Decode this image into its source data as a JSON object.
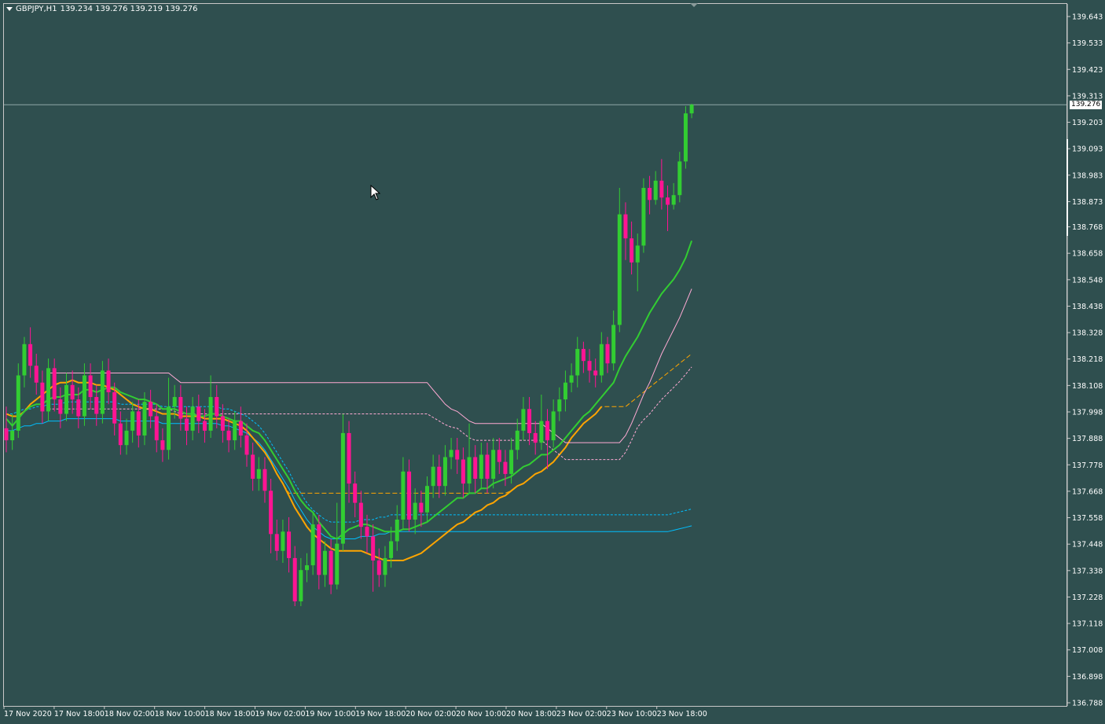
{
  "header": {
    "symbol": "GBPJPY,H1",
    "ohlc": "139.234 139.276 139.219 139.276"
  },
  "current_price_label": "139.276",
  "colors": {
    "background": "#2f4f4f",
    "bull_candle": "#32cd32",
    "bear_candle": "#ff1493",
    "price_line": "#8fa8a8",
    "ma_fast": "#32cd32",
    "ma_orange": "#ffa500",
    "ma_cyan": "#00bfff",
    "ma_pink": "#ffaad4"
  },
  "chart_data": {
    "type": "candlestick",
    "symbol": "GBPJPY",
    "timeframe": "H1",
    "ylim": [
      136.74,
      139.69
    ],
    "y_ticks": [
      "139.643",
      "139.533",
      "139.423",
      "139.313",
      "139.203",
      "139.093",
      "138.983",
      "138.873",
      "138.768",
      "138.658",
      "138.548",
      "138.438",
      "138.328",
      "138.218",
      "138.108",
      "137.998",
      "137.888",
      "137.778",
      "137.668",
      "137.558",
      "137.448",
      "137.338",
      "137.228",
      "137.118",
      "137.008",
      "136.898",
      "136.788"
    ],
    "x_ticks": [
      "17 Nov 2020",
      "17 Nov 18:00",
      "18 Nov 02:00",
      "18 Nov 10:00",
      "18 Nov 18:00",
      "19 Nov 02:00",
      "19 Nov 10:00",
      "19 Nov 18:00",
      "20 Nov 02:00",
      "20 Nov 10:00",
      "20 Nov 18:00",
      "23 Nov 02:00",
      "23 Nov 10:00",
      "23 Nov 18:00"
    ],
    "current_price": 139.276,
    "candles": [
      [
        137.93,
        137.88,
        138.02,
        137.83
      ],
      [
        137.88,
        137.92,
        137.99,
        137.84
      ],
      [
        137.92,
        138.15,
        138.2,
        137.89
      ],
      [
        138.15,
        138.28,
        138.31,
        138.1
      ],
      [
        138.28,
        138.19,
        138.35,
        138.14
      ],
      [
        138.19,
        138.12,
        138.24,
        138.07
      ],
      [
        138.12,
        138.0,
        138.17,
        137.95
      ],
      [
        138.0,
        138.18,
        138.22,
        137.96
      ],
      [
        138.18,
        138.05,
        138.22,
        138.0
      ],
      [
        138.05,
        137.99,
        138.1,
        137.93
      ],
      [
        137.99,
        138.11,
        138.16,
        137.96
      ],
      [
        138.11,
        138.05,
        138.17,
        137.99
      ],
      [
        138.05,
        137.98,
        138.1,
        137.93
      ],
      [
        137.98,
        138.15,
        138.2,
        137.94
      ],
      [
        138.15,
        138.06,
        138.2,
        138.01
      ],
      [
        138.06,
        137.99,
        138.11,
        137.94
      ],
      [
        137.99,
        138.17,
        138.21,
        137.95
      ],
      [
        138.17,
        138.08,
        138.22,
        138.03
      ],
      [
        138.08,
        137.95,
        138.12,
        137.9
      ],
      [
        137.95,
        137.86,
        138.0,
        137.82
      ],
      [
        137.86,
        137.92,
        137.97,
        137.82
      ],
      [
        137.92,
        138.0,
        138.04,
        137.87
      ],
      [
        138.0,
        137.9,
        138.05,
        137.85
      ],
      [
        137.9,
        138.04,
        138.08,
        137.86
      ],
      [
        138.04,
        137.98,
        138.09,
        137.93
      ],
      [
        137.98,
        137.88,
        138.03,
        137.83
      ],
      [
        137.88,
        137.84,
        137.93,
        137.79
      ],
      [
        137.84,
        138.02,
        138.14,
        137.8
      ],
      [
        138.02,
        138.06,
        138.11,
        137.97
      ],
      [
        138.06,
        137.97,
        138.11,
        137.92
      ],
      [
        137.97,
        137.92,
        138.02,
        137.86
      ],
      [
        137.92,
        138.02,
        138.06,
        137.88
      ],
      [
        138.02,
        137.96,
        138.07,
        137.91
      ],
      [
        137.96,
        137.92,
        138.01,
        137.87
      ],
      [
        137.92,
        138.06,
        138.15,
        137.89
      ],
      [
        138.06,
        137.98,
        138.11,
        137.93
      ],
      [
        137.98,
        137.92,
        138.03,
        137.87
      ],
      [
        137.92,
        137.88,
        137.97,
        137.83
      ],
      [
        137.88,
        137.96,
        138.0,
        137.84
      ],
      [
        137.96,
        137.9,
        138.02,
        137.85
      ],
      [
        137.9,
        137.82,
        137.95,
        137.77
      ],
      [
        137.82,
        137.72,
        137.87,
        137.67
      ],
      [
        137.72,
        137.76,
        137.81,
        137.67
      ],
      [
        137.76,
        137.67,
        137.81,
        137.62
      ],
      [
        137.67,
        137.49,
        137.72,
        137.41
      ],
      [
        137.49,
        137.42,
        137.55,
        137.38
      ],
      [
        137.42,
        137.5,
        137.55,
        137.37
      ],
      [
        137.5,
        137.39,
        137.56,
        137.33
      ],
      [
        137.39,
        137.21,
        137.44,
        137.19
      ],
      [
        137.21,
        137.34,
        137.39,
        137.19
      ],
      [
        137.34,
        137.36,
        137.41,
        137.29
      ],
      [
        137.36,
        137.53,
        137.58,
        137.32
      ],
      [
        137.53,
        137.32,
        137.57,
        137.26
      ],
      [
        137.32,
        137.42,
        137.46,
        137.27
      ],
      [
        137.42,
        137.28,
        137.47,
        137.24
      ],
      [
        137.28,
        137.45,
        137.62,
        137.26
      ],
      [
        137.45,
        137.91,
        137.99,
        137.42
      ],
      [
        137.91,
        137.7,
        137.96,
        137.62
      ],
      [
        137.7,
        137.62,
        137.75,
        137.56
      ],
      [
        137.62,
        137.52,
        137.67,
        137.47
      ],
      [
        137.52,
        137.48,
        137.57,
        137.41
      ],
      [
        137.48,
        137.38,
        137.53,
        137.25
      ],
      [
        137.38,
        137.32,
        137.43,
        137.27
      ],
      [
        137.32,
        137.39,
        137.44,
        137.27
      ],
      [
        137.39,
        137.46,
        137.52,
        137.35
      ],
      [
        137.46,
        137.55,
        137.61,
        137.42
      ],
      [
        137.55,
        137.75,
        137.81,
        137.51
      ],
      [
        137.75,
        137.55,
        137.8,
        137.5
      ],
      [
        137.55,
        137.62,
        137.68,
        137.49
      ],
      [
        137.62,
        137.58,
        137.67,
        137.52
      ],
      [
        137.58,
        137.69,
        137.73,
        137.54
      ],
      [
        137.69,
        137.77,
        137.82,
        137.64
      ],
      [
        137.77,
        137.69,
        137.82,
        137.64
      ],
      [
        137.69,
        137.81,
        137.86,
        137.65
      ],
      [
        137.81,
        137.84,
        137.89,
        137.76
      ],
      [
        137.84,
        137.8,
        137.89,
        137.74
      ],
      [
        137.8,
        137.7,
        137.85,
        137.64
      ],
      [
        137.7,
        137.81,
        137.95,
        137.66
      ],
      [
        137.81,
        137.72,
        137.86,
        137.66
      ],
      [
        137.72,
        137.82,
        137.87,
        137.68
      ],
      [
        137.82,
        137.72,
        137.87,
        137.66
      ],
      [
        137.72,
        137.84,
        137.89,
        137.68
      ],
      [
        137.84,
        137.79,
        137.89,
        137.74
      ],
      [
        137.79,
        137.74,
        137.84,
        137.69
      ],
      [
        137.74,
        137.84,
        137.89,
        137.7
      ],
      [
        137.84,
        137.92,
        137.97,
        137.8
      ],
      [
        137.92,
        138.01,
        138.06,
        137.88
      ],
      [
        138.01,
        137.91,
        138.06,
        137.86
      ],
      [
        137.91,
        137.87,
        137.96,
        137.82
      ],
      [
        137.87,
        137.96,
        138.07,
        137.84
      ],
      [
        137.96,
        137.88,
        138.01,
        137.76
      ],
      [
        137.88,
        138.0,
        138.05,
        137.85
      ],
      [
        138.0,
        138.05,
        138.1,
        137.96
      ],
      [
        138.05,
        138.12,
        138.17,
        138.0
      ],
      [
        138.12,
        138.15,
        138.2,
        138.08
      ],
      [
        138.15,
        138.26,
        138.31,
        138.1
      ],
      [
        138.26,
        138.21,
        138.29,
        138.16
      ],
      [
        138.21,
        138.17,
        138.26,
        138.12
      ],
      [
        138.17,
        138.15,
        138.22,
        138.1
      ],
      [
        138.15,
        138.28,
        138.33,
        138.12
      ],
      [
        138.28,
        138.2,
        138.31,
        138.16
      ],
      [
        138.2,
        138.36,
        138.42,
        138.17
      ],
      [
        138.36,
        138.82,
        138.93,
        138.33
      ],
      [
        138.82,
        138.72,
        138.87,
        138.63
      ],
      [
        138.72,
        138.62,
        138.79,
        138.57
      ],
      [
        138.62,
        138.69,
        138.74,
        138.5
      ],
      [
        138.69,
        138.93,
        138.97,
        138.66
      ],
      [
        138.93,
        138.88,
        138.98,
        138.82
      ],
      [
        138.88,
        138.96,
        139.0,
        138.86
      ],
      [
        138.96,
        138.89,
        139.05,
        138.84
      ],
      [
        138.89,
        138.86,
        138.94,
        138.75
      ],
      [
        138.86,
        138.9,
        138.95,
        138.84
      ],
      [
        138.9,
        139.04,
        139.08,
        138.87
      ],
      [
        139.04,
        139.24,
        139.27,
        139.01
      ],
      [
        139.24,
        139.276,
        139.28,
        139.22
      ]
    ],
    "ma_fast": [
      137.97,
      137.94,
      137.97,
      138.0,
      138.02,
      138.03,
      138.03,
      138.05,
      138.06,
      138.06,
      138.07,
      138.07,
      138.07,
      138.09,
      138.09,
      138.08,
      138.09,
      138.1,
      138.1,
      138.08,
      138.07,
      138.06,
      138.05,
      138.05,
      138.04,
      138.03,
      138.01,
      138.01,
      138.01,
      138.0,
      137.99,
      137.99,
      137.98,
      137.98,
      137.99,
      137.99,
      137.98,
      137.97,
      137.96,
      137.96,
      137.94,
      137.92,
      137.91,
      137.88,
      137.84,
      137.8,
      137.76,
      137.72,
      137.67,
      137.63,
      137.6,
      137.58,
      137.54,
      137.51,
      137.48,
      137.47,
      137.49,
      137.51,
      137.52,
      137.53,
      137.53,
      137.52,
      137.51,
      137.5,
      137.5,
      137.5,
      137.51,
      137.51,
      137.52,
      137.53,
      137.54,
      137.56,
      137.58,
      137.6,
      137.62,
      137.64,
      137.64,
      137.66,
      137.66,
      137.68,
      137.68,
      137.7,
      137.71,
      137.72,
      137.73,
      137.75,
      137.77,
      137.78,
      137.8,
      137.82,
      137.82,
      137.84,
      137.86,
      137.89,
      137.92,
      137.95,
      137.98,
      138.0,
      138.03,
      138.06,
      138.09,
      138.12,
      138.18,
      138.23,
      138.27,
      138.31,
      138.36,
      138.41,
      138.45,
      138.49,
      138.52,
      138.55,
      138.59,
      138.64,
      138.71
    ],
    "ma_orange": [
      137.99,
      137.98,
      137.98,
      138.0,
      138.03,
      138.05,
      138.07,
      138.09,
      138.11,
      138.12,
      138.12,
      138.13,
      138.12,
      138.12,
      138.12,
      138.11,
      138.11,
      138.1,
      138.09,
      138.07,
      138.05,
      138.03,
      138.02,
      138.01,
      138.01,
      138.0,
      137.99,
      137.99,
      137.99,
      137.98,
      137.98,
      137.98,
      137.98,
      137.97,
      137.97,
      137.97,
      137.97,
      137.96,
      137.95,
      137.94,
      137.92,
      137.89,
      137.86,
      137.83,
      137.79,
      137.74,
      137.7,
      137.65,
      137.6,
      137.56,
      137.52,
      137.49,
      137.47,
      137.45,
      137.43,
      137.42,
      137.42,
      137.42,
      137.42,
      137.42,
      137.41,
      137.4,
      137.39,
      137.38,
      137.38,
      137.38,
      137.38,
      137.39,
      137.4,
      137.41,
      137.43,
      137.45,
      137.47,
      137.49,
      137.51,
      137.53,
      137.54,
      137.56,
      137.58,
      137.59,
      137.61,
      137.62,
      137.64,
      137.65,
      137.67,
      137.69,
      137.7,
      137.72,
      137.74,
      137.75,
      137.77,
      137.79,
      137.82,
      137.85,
      137.89,
      137.92,
      137.95,
      137.97,
      137.99,
      138.02
    ],
    "ma_cyan": [
      137.92,
      137.92,
      137.93,
      137.94,
      137.94,
      137.95,
      137.95,
      137.96,
      137.96,
      137.96,
      137.97,
      137.97,
      137.97,
      137.97,
      137.97,
      137.97,
      137.97,
      137.97,
      137.97,
      137.96,
      137.96,
      137.96,
      137.96,
      137.96,
      137.96,
      137.96,
      137.95,
      137.95,
      137.95,
      137.95,
      137.95,
      137.95,
      137.95,
      137.95,
      137.95,
      137.95,
      137.94,
      137.94,
      137.93,
      137.92,
      137.91,
      137.89,
      137.87,
      137.84,
      137.8,
      137.76,
      137.72,
      137.68,
      137.63,
      137.59,
      137.55,
      137.52,
      137.5,
      137.48,
      137.47,
      137.47,
      137.47,
      137.47,
      137.47,
      137.48,
      137.48,
      137.48,
      137.49,
      137.49,
      137.5,
      137.5,
      137.5,
      137.5
    ],
    "pink_upper": [
      138.16,
      138.16,
      138.16,
      138.16,
      138.16,
      138.16,
      138.16,
      138.16,
      138.16,
      138.16,
      138.16,
      138.16,
      138.16,
      138.16,
      138.16,
      138.16,
      138.16,
      138.16,
      138.16,
      138.16,
      138.16,
      138.14,
      138.12,
      138.12,
      138.12,
      138.12,
      138.12,
      138.12,
      138.12,
      138.12,
      138.12,
      138.12,
      138.12,
      138.12,
      138.12,
      138.12,
      138.12,
      138.12,
      138.12,
      138.12,
      138.12,
      138.12,
      138.12,
      138.12,
      138.12,
      138.12,
      138.12,
      138.12,
      138.12,
      138.12,
      138.12,
      138.12,
      138.12,
      138.12,
      138.12,
      138.12,
      138.12,
      138.12,
      138.12,
      138.12,
      138.12,
      138.12,
      138.12,
      138.12,
      138.09,
      138.06,
      138.03,
      138.01,
      138.0,
      137.98,
      137.96,
      137.95,
      137.95,
      137.95,
      137.95,
      137.95,
      137.95,
      137.95,
      137.95,
      137.95,
      137.95,
      137.95,
      137.95,
      137.93,
      137.91,
      137.89,
      137.87,
      137.87,
      137.87,
      137.87,
      137.87,
      137.87,
      137.87,
      137.87,
      137.87,
      137.87,
      137.9,
      137.95,
      138.01,
      138.07,
      138.12,
      138.18,
      138.24,
      138.29,
      138.34,
      138.39,
      138.45,
      138.51
    ]
  }
}
